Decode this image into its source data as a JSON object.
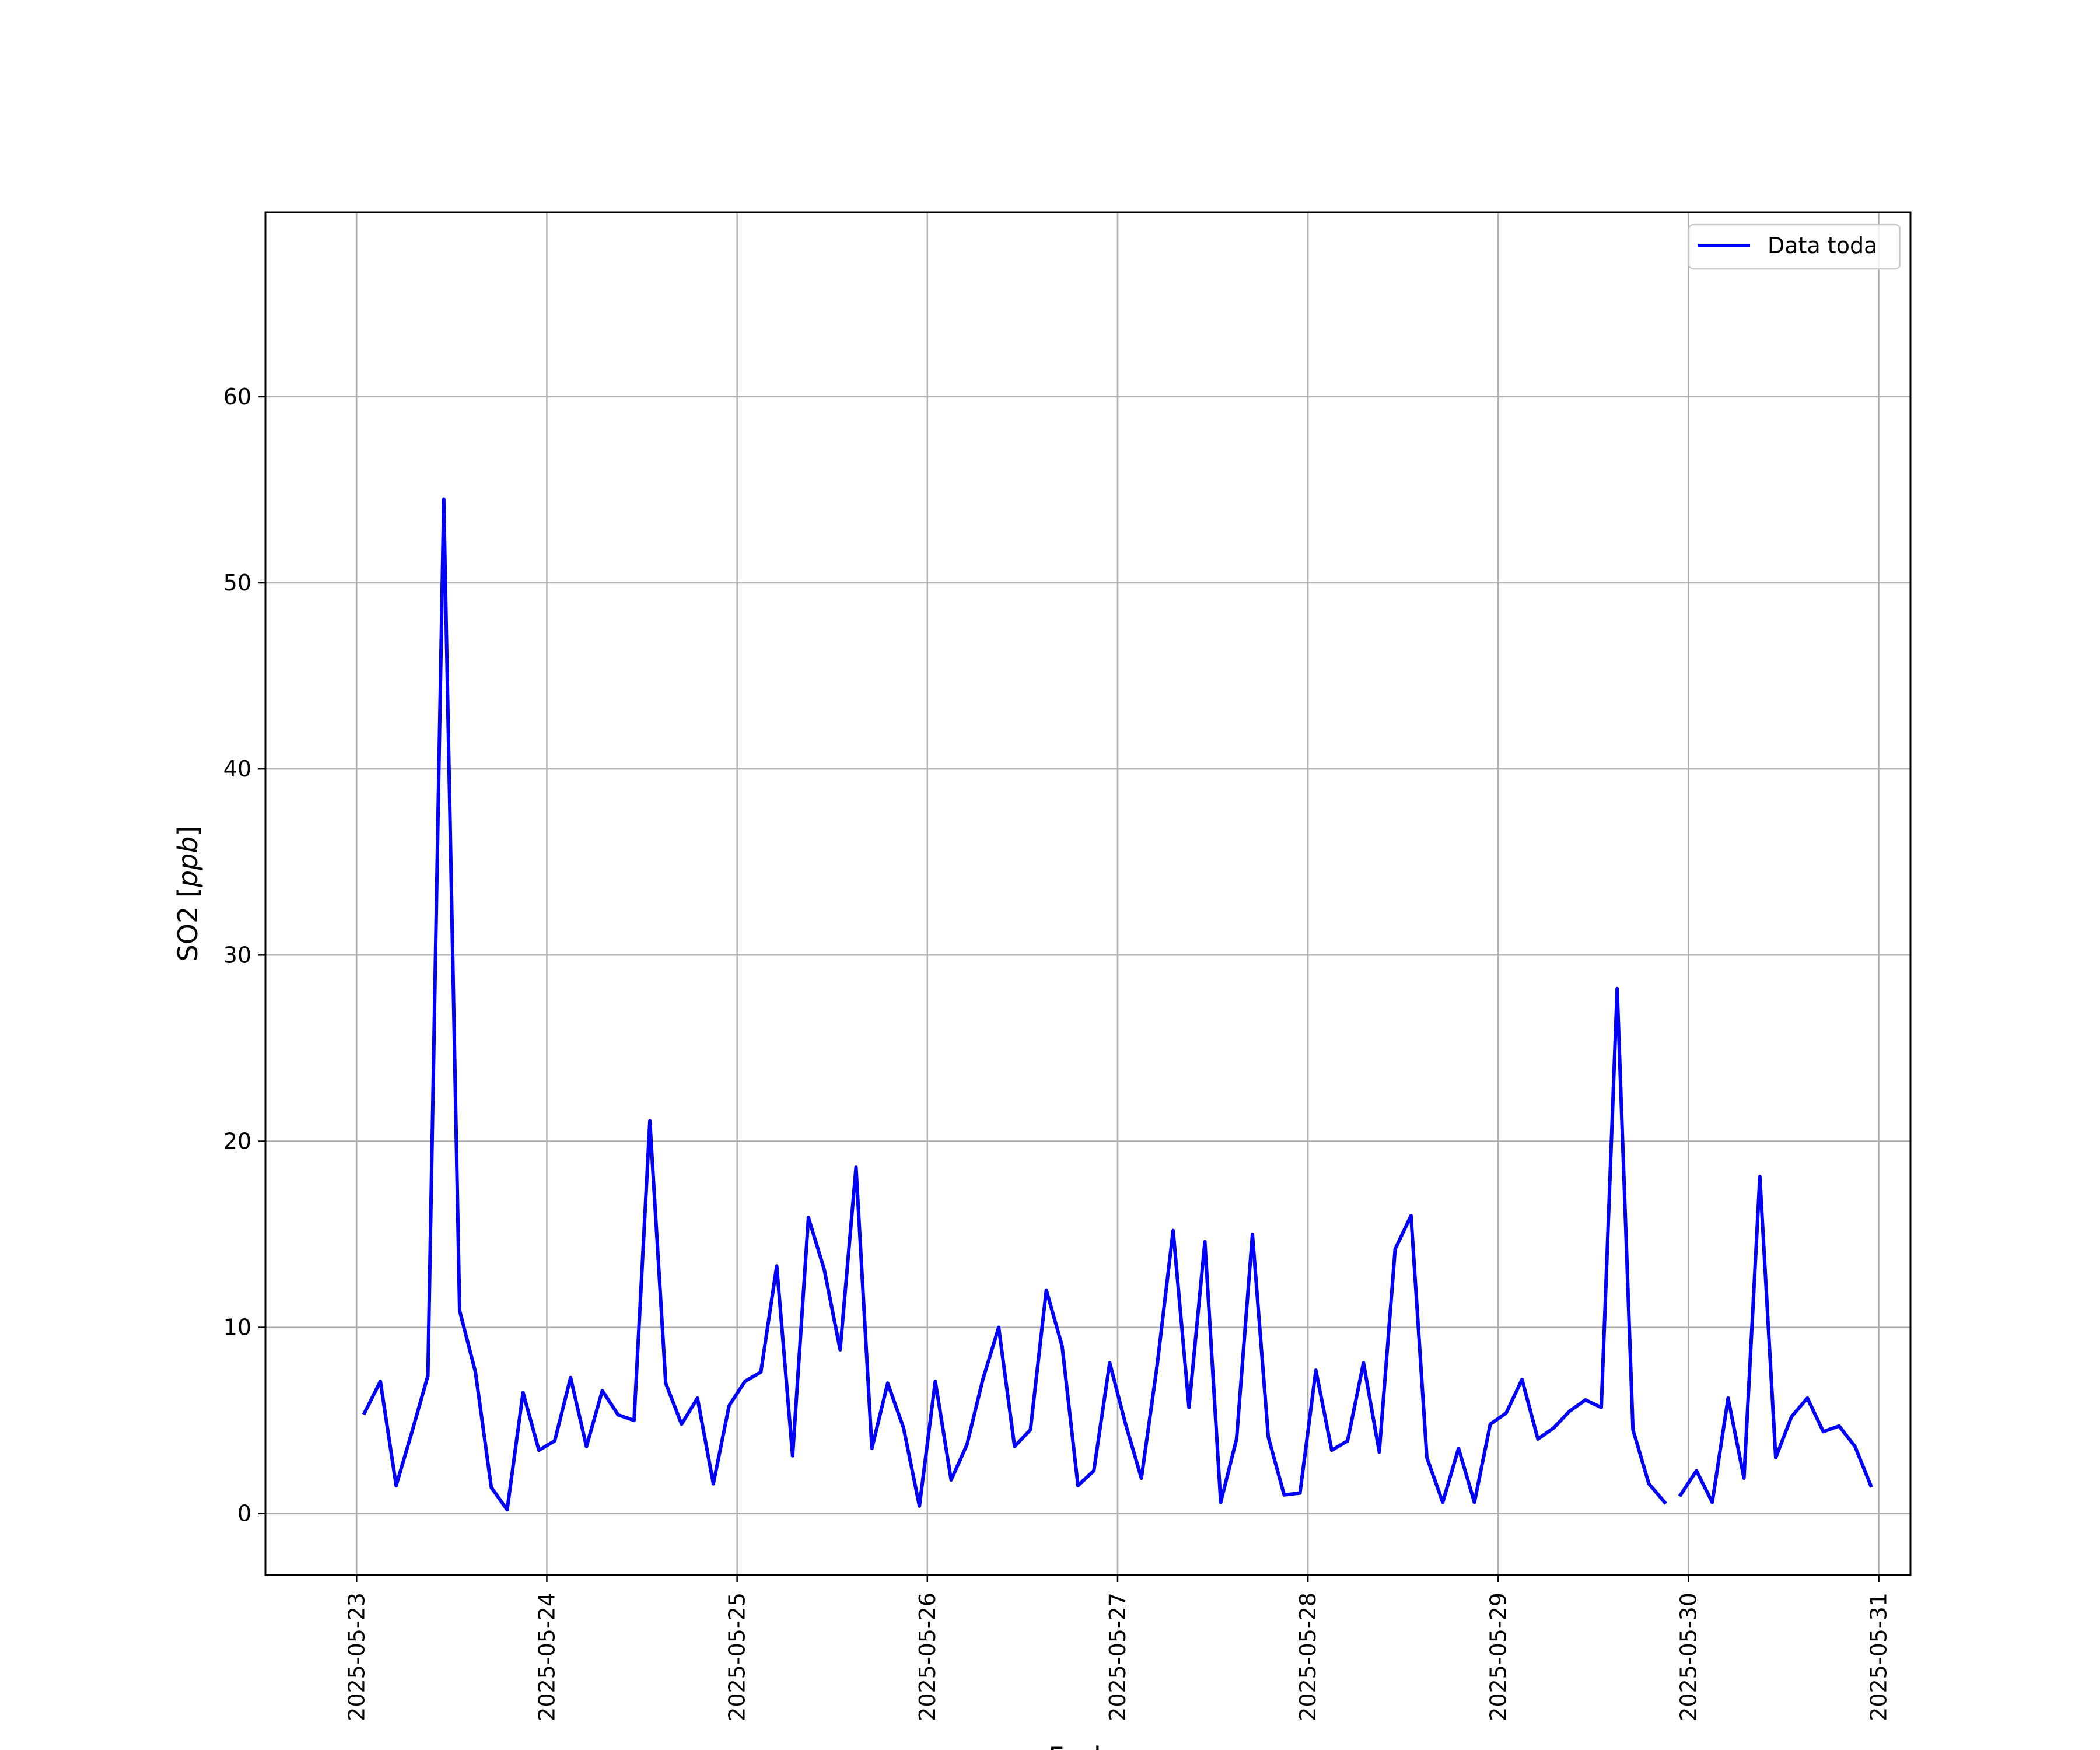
{
  "chart_data": {
    "type": "line",
    "xlabel": "Fecha",
    "ylabel": "SO2 [ppb]",
    "ylabel_parts": {
      "prefix": "SO2 [",
      "unit": "ppb",
      "suffix": "]"
    },
    "xlim": [
      "2025-05-22 12:30",
      "2025-05-31 04:00"
    ],
    "ylim": [
      -3.3,
      69.9
    ],
    "grid": true,
    "legend_position": "top-right",
    "x_tick_labels": [
      "2025-05-23",
      "2025-05-24",
      "2025-05-25",
      "2025-05-26",
      "2025-05-27",
      "2025-05-28",
      "2025-05-29",
      "2025-05-30",
      "2025-05-31"
    ],
    "y_ticks": [
      0,
      10,
      20,
      30,
      40,
      50,
      60
    ],
    "series": [
      {
        "name": "Data toda",
        "color": "#0000ff",
        "x": [
          "2025-05-23 01:00",
          "2025-05-23 03:00",
          "2025-05-23 05:00",
          "2025-05-23 07:00",
          "2025-05-23 09:00",
          "2025-05-23 11:00",
          "2025-05-23 13:00",
          "2025-05-23 15:00",
          "2025-05-23 17:00",
          "2025-05-23 19:00",
          "2025-05-23 21:00",
          "2025-05-23 23:00",
          "2025-05-24 01:00",
          "2025-05-24 03:00",
          "2025-05-24 05:00",
          "2025-05-24 07:00",
          "2025-05-24 09:00",
          "2025-05-24 11:00",
          "2025-05-24 13:00",
          "2025-05-24 15:00",
          "2025-05-24 17:00",
          "2025-05-24 19:00",
          "2025-05-24 21:00",
          "2025-05-24 23:00",
          "2025-05-25 01:00",
          "2025-05-25 03:00",
          "2025-05-25 05:00",
          "2025-05-25 07:00",
          "2025-05-25 09:00",
          "2025-05-25 11:00",
          "2025-05-25 13:00",
          "2025-05-25 15:00",
          "2025-05-25 17:00",
          "2025-05-25 19:00",
          "2025-05-25 21:00",
          "2025-05-25 23:00",
          "2025-05-26 01:00",
          "2025-05-26 03:00",
          "2025-05-26 05:00",
          "2025-05-26 07:00",
          "2025-05-26 09:00",
          "2025-05-26 11:00",
          "2025-05-26 13:00",
          "2025-05-26 15:00",
          "2025-05-26 17:00",
          "2025-05-26 19:00",
          "2025-05-26 21:00",
          "2025-05-26 23:00",
          "2025-05-27 01:00",
          "2025-05-27 03:00",
          "2025-05-27 05:00",
          "2025-05-27 07:00",
          "2025-05-27 09:00",
          "2025-05-27 11:00",
          "2025-05-27 13:00",
          "2025-05-27 15:00",
          "2025-05-27 17:00",
          "2025-05-27 19:00",
          "2025-05-27 21:00",
          "2025-05-27 23:00",
          "2025-05-28 01:00",
          "2025-05-28 03:00",
          "2025-05-28 05:00",
          "2025-05-28 07:00",
          "2025-05-28 09:00",
          "2025-05-28 11:00",
          "2025-05-28 13:00",
          "2025-05-28 15:00",
          "2025-05-28 17:00",
          "2025-05-28 19:00",
          "2025-05-28 21:00",
          "2025-05-28 23:00",
          "2025-05-29 01:00",
          "2025-05-29 03:00",
          "2025-05-29 05:00",
          "2025-05-29 07:00",
          "2025-05-29 09:00",
          "2025-05-29 11:00",
          "2025-05-29 13:00",
          "2025-05-29 15:00",
          "2025-05-29 17:00",
          "2025-05-29 19:00",
          "2025-05-29 21:00",
          "2025-05-29 23:00",
          "2025-05-30 01:00",
          "2025-05-30 03:00",
          "2025-05-30 05:00",
          "2025-05-30 07:00",
          "2025-05-30 09:00",
          "2025-05-30 11:00",
          "2025-05-30 13:00",
          "2025-05-30 15:00",
          "2025-05-30 17:00",
          "2025-05-30 19:00",
          "2025-05-30 21:00",
          "2025-05-30 23:00"
        ],
        "y": [
          5.4,
          7.1,
          1.5,
          4.4,
          7.4,
          54.5,
          10.9,
          7.6,
          1.4,
          0.2,
          6.5,
          3.4,
          3.9,
          7.3,
          3.6,
          6.6,
          5.3,
          5.0,
          21.1,
          7.0,
          4.8,
          6.2,
          1.6,
          5.8,
          7.1,
          7.6,
          13.3,
          3.1,
          15.9,
          13.1,
          8.8,
          18.6,
          3.5,
          7.0,
          4.6,
          0.4,
          7.1,
          1.8,
          3.7,
          7.2,
          10.0,
          3.6,
          4.5,
          12.0,
          9.0,
          1.5,
          2.3,
          8.1,
          4.8,
          1.9,
          8.0,
          15.2,
          5.7,
          14.6,
          0.6,
          4.0,
          15.0,
          4.1,
          1.0,
          1.1,
          7.7,
          3.4,
          3.9,
          8.1,
          3.3,
          14.2,
          16.0,
          3.0,
          0.6,
          3.5,
          0.6,
          4.8,
          5.4,
          7.2,
          4.0,
          4.6,
          5.5,
          6.1,
          5.7,
          28.2,
          4.5,
          1.6,
          0.6,
          1.0,
          2.3,
          0.6,
          6.2,
          1.9,
          18.1,
          3.0,
          5.2,
          6.2,
          4.4,
          4.7,
          3.6,
          1.5
        ],
        "note_gap_after_index": 82
      }
    ]
  }
}
